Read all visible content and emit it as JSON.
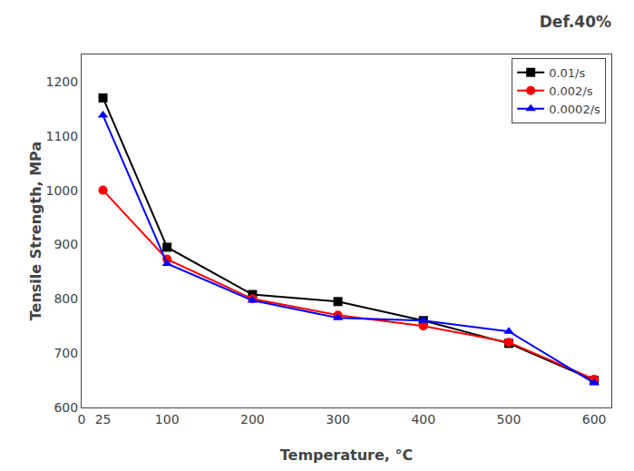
{
  "chart_data": {
    "type": "line",
    "title": "Def.40%",
    "x_label": "Temperature, °C",
    "y_label": "Tensile Strength, MPa",
    "x": [
      25,
      100,
      200,
      300,
      400,
      500,
      600
    ],
    "series": [
      {
        "name": "0.01/s",
        "color": "black",
        "marker": "square",
        "values": [
          1170,
          895,
          808,
          795,
          760,
          718,
          650
        ]
      },
      {
        "name": "0.002/s",
        "color": "red",
        "marker": "circle",
        "values": [
          1000,
          873,
          800,
          770,
          750,
          720,
          652
        ]
      },
      {
        "name": "0.0002/s",
        "color": "blue",
        "marker": "triangle",
        "values": [
          1138,
          865,
          797,
          765,
          760,
          740,
          645
        ]
      }
    ],
    "xlim": [
      0,
      620
    ],
    "ylim": [
      600,
      1250
    ],
    "xticks": [
      0,
      25,
      100,
      200,
      300,
      400,
      500,
      600
    ],
    "yticks": [
      600,
      700,
      800,
      900,
      1000,
      1100,
      1200
    ],
    "grid": false,
    "legend": "upper right"
  }
}
